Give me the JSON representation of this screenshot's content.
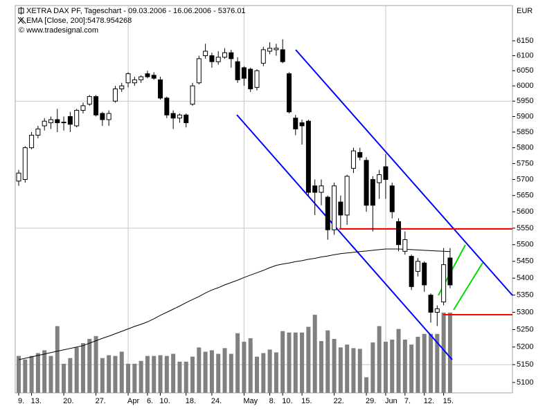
{
  "chart_data": {
    "type": "candlestick",
    "title": "XETRA DAX PF, Tageschart - 09.03.2006 - 16.06.2006 - 5376.01",
    "credit": "© www.tradesignal.com",
    "y_unit": "EUR",
    "log_scale": true,
    "ylim": [
      5071,
      6270
    ],
    "yticks": [
      5100,
      5150,
      5200,
      5250,
      5300,
      5350,
      5400,
      5450,
      5500,
      5550,
      5600,
      5650,
      5700,
      5750,
      5800,
      5850,
      5900,
      5950,
      6000,
      6050,
      6100,
      6150
    ],
    "categories": [
      "9.",
      null,
      "13.",
      null,
      null,
      null,
      null,
      "20.",
      null,
      null,
      null,
      null,
      "27.",
      null,
      null,
      null,
      null,
      "Apr",
      null,
      null,
      "6.",
      null,
      "10.",
      null,
      null,
      null,
      "18.",
      null,
      null,
      null,
      "24.",
      null,
      null,
      null,
      null,
      "May",
      null,
      null,
      null,
      "8.",
      null,
      "10.",
      null,
      null,
      "15.",
      null,
      null,
      null,
      null,
      "22.",
      null,
      null,
      null,
      null,
      "29.",
      null,
      null,
      "Jun",
      null,
      null,
      "7.",
      null,
      null,
      "12.",
      null,
      null,
      "15.",
      null
    ],
    "open": [
      5695,
      5700,
      5800,
      5840,
      5870,
      5880,
      5890,
      5880,
      5900,
      5870,
      5920,
      5940,
      5965,
      5910,
      5890,
      5950,
      5990,
      6010,
      6010,
      6020,
      6040,
      6035,
      6020,
      5960,
      5910,
      5895,
      5905,
      5940,
      6010,
      6100,
      6100,
      6080,
      6095,
      6110,
      6080,
      6060,
      6055,
      5995,
      6075,
      6115,
      6120,
      6120,
      6040,
      5895,
      5880,
      5885,
      5680,
      5660,
      5645,
      5545,
      5630,
      5590,
      5735,
      5785,
      5760,
      5700,
      5690,
      5740,
      5680,
      5570,
      5480,
      5465,
      5420,
      5445,
      5350,
      5300,
      5330,
      5460
    ],
    "high": [
      5730,
      5805,
      5850,
      5870,
      5895,
      5900,
      5925,
      5900,
      5915,
      5925,
      5945,
      5970,
      5970,
      5915,
      5920,
      6000,
      6010,
      6045,
      6030,
      6035,
      6050,
      6045,
      6030,
      5965,
      5920,
      5910,
      5910,
      6010,
      6100,
      6140,
      6110,
      6115,
      6125,
      6120,
      6095,
      6065,
      6060,
      6055,
      6130,
      6145,
      6140,
      6155,
      6045,
      5905,
      5890,
      5890,
      5700,
      5700,
      5650,
      5690,
      5650,
      5715,
      5800,
      5800,
      5770,
      5710,
      5730,
      5780,
      5690,
      5580,
      5540,
      5470,
      5460,
      5450,
      5355,
      5320,
      5490,
      5490
    ],
    "low": [
      5680,
      5690,
      5795,
      5830,
      5855,
      5860,
      5850,
      5855,
      5850,
      5865,
      5910,
      5935,
      5900,
      5870,
      5870,
      5945,
      5980,
      5995,
      6000,
      6010,
      6025,
      6020,
      5955,
      5895,
      5860,
      5880,
      5865,
      5935,
      6005,
      6090,
      6060,
      6070,
      6090,
      6060,
      6010,
      6000,
      5980,
      5985,
      6065,
      6105,
      6100,
      6075,
      5910,
      5840,
      5810,
      5650,
      5590,
      5620,
      5515,
      5530,
      5550,
      5560,
      5720,
      5760,
      5600,
      5540,
      5640,
      5640,
      5580,
      5480,
      5470,
      5365,
      5405,
      5360,
      5270,
      5260,
      5320,
      5370
    ],
    "close": [
      5720,
      5800,
      5840,
      5860,
      5885,
      5890,
      5880,
      5882,
      5875,
      5920,
      5935,
      5965,
      5905,
      5890,
      5910,
      5990,
      6000,
      6040,
      6020,
      6030,
      6030,
      6025,
      5960,
      5905,
      5895,
      5905,
      5880,
      6000,
      6090,
      6115,
      6080,
      6095,
      6110,
      6090,
      6020,
      6025,
      5990,
      6050,
      6120,
      6125,
      6125,
      6080,
      5915,
      5860,
      5870,
      5660,
      5660,
      5680,
      5545,
      5680,
      5590,
      5710,
      5790,
      5770,
      5620,
      5620,
      5715,
      5700,
      5600,
      5500,
      5515,
      5375,
      5450,
      5380,
      5300,
      5310,
      5440,
      5380
    ],
    "indicator": {
      "name": "EMA [Close, 200]:5478.954268",
      "color": "#000000",
      "values": [
        5164,
        5168,
        5172,
        5176,
        5180,
        5184,
        5188,
        5192,
        5196,
        5200,
        5204,
        5211,
        5218,
        5225,
        5231,
        5238,
        5245,
        5252,
        5259,
        5265,
        5272,
        5281,
        5291,
        5300,
        5309,
        5318,
        5328,
        5337,
        5346,
        5356,
        5365,
        5372,
        5380,
        5387,
        5394,
        5402,
        5409,
        5416,
        5423,
        5431,
        5438,
        5442,
        5445,
        5449,
        5452,
        5456,
        5459,
        5463,
        5466,
        5470,
        5473,
        5475,
        5477,
        5479,
        5481,
        5483,
        5485,
        5487,
        5487,
        5487,
        5486,
        5485,
        5484,
        5483,
        5482,
        5481,
        5480,
        5479
      ]
    },
    "volume": [
      52,
      47,
      52,
      56,
      60,
      52,
      94,
      41,
      49,
      64,
      70,
      76,
      80,
      49,
      53,
      52,
      58,
      41,
      41,
      45,
      52,
      52,
      53,
      52,
      55,
      44,
      44,
      51,
      64,
      58,
      60,
      55,
      63,
      55,
      84,
      72,
      77,
      51,
      56,
      61,
      57,
      87,
      85,
      85,
      85,
      93,
      110,
      73,
      88,
      76,
      64,
      68,
      63,
      62,
      22,
      71,
      94,
      72,
      75,
      90,
      75,
      68,
      79,
      83,
      83,
      83,
      113,
      113
    ],
    "vlim": [
      0,
      120
    ],
    "volume_color": "#808080",
    "up_color": "#ffffff",
    "down_color": "#000000"
  }
}
